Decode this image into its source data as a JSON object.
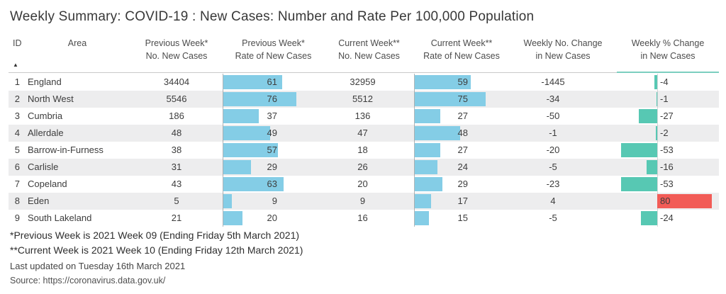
{
  "title": "Weekly Summary: COVID-19 : New Cases: Number and Rate Per 100,000 Population",
  "sort_icon": "▲",
  "colors": {
    "bar_blue": "#84cde6",
    "bar_teal": "#57c8b3",
    "bar_red": "#f25c57",
    "stripe": "#ededee",
    "header_underline": "#c9c9c9",
    "header_underline_accent": "#7ccfbf",
    "body_text": "#3d3d3d"
  },
  "table": {
    "columns": [
      {
        "id": "id",
        "line1": "ID",
        "line2": ""
      },
      {
        "id": "area",
        "line1": "Area",
        "line2": ""
      },
      {
        "id": "prev_no",
        "line1": "Previous Week*",
        "line2": "No. New Cases"
      },
      {
        "id": "prev_rate",
        "line1": "Previous Week*",
        "line2": "Rate of New Cases"
      },
      {
        "id": "curr_no",
        "line1": "Current Week**",
        "line2": "No. New Cases"
      },
      {
        "id": "curr_rate",
        "line1": "Current Week**",
        "line2": "Rate of New Cases"
      },
      {
        "id": "wk_change",
        "line1": "Weekly No. Change",
        "line2": "in New Cases"
      },
      {
        "id": "pct_change",
        "line1": "Weekly % Change",
        "line2": "in New Cases"
      }
    ],
    "rows": [
      {
        "id": 1,
        "area": "England",
        "prev_no": 34404,
        "prev_rate": 61,
        "curr_no": 32959,
        "curr_rate": 59,
        "wk_change": -1445,
        "pct_change": -4
      },
      {
        "id": 2,
        "area": "North West",
        "prev_no": 5546,
        "prev_rate": 76,
        "curr_no": 5512,
        "curr_rate": 75,
        "wk_change": -34,
        "pct_change": -1
      },
      {
        "id": 3,
        "area": "Cumbria",
        "prev_no": 186,
        "prev_rate": 37,
        "curr_no": 136,
        "curr_rate": 27,
        "wk_change": -50,
        "pct_change": -27
      },
      {
        "id": 4,
        "area": "Allerdale",
        "prev_no": 48,
        "prev_rate": 49,
        "curr_no": 47,
        "curr_rate": 48,
        "wk_change": -1,
        "pct_change": -2
      },
      {
        "id": 5,
        "area": "Barrow-in-Furness",
        "prev_no": 38,
        "prev_rate": 57,
        "curr_no": 18,
        "curr_rate": 27,
        "wk_change": -20,
        "pct_change": -53
      },
      {
        "id": 6,
        "area": "Carlisle",
        "prev_no": 31,
        "prev_rate": 29,
        "curr_no": 26,
        "curr_rate": 24,
        "wk_change": -5,
        "pct_change": -16
      },
      {
        "id": 7,
        "area": "Copeland",
        "prev_no": 43,
        "prev_rate": 63,
        "curr_no": 20,
        "curr_rate": 29,
        "wk_change": -23,
        "pct_change": -53
      },
      {
        "id": 8,
        "area": "Eden",
        "prev_no": 5,
        "prev_rate": 9,
        "curr_no": 9,
        "curr_rate": 17,
        "wk_change": 4,
        "pct_change": 80
      },
      {
        "id": 9,
        "area": "South Lakeland",
        "prev_no": 21,
        "prev_rate": 20,
        "curr_no": 16,
        "curr_rate": 15,
        "wk_change": -5,
        "pct_change": -24
      }
    ]
  },
  "chart_data": {
    "type": "table",
    "title": "Weekly Summary: COVID-19 : New Cases: Number and Rate Per 100,000 Population",
    "columns": [
      "ID",
      "Area",
      "Previous Week* No. New Cases",
      "Previous Week* Rate of New Cases",
      "Current Week** No. New Cases",
      "Current Week** Rate of New Cases",
      "Weekly No. Change in New Cases",
      "Weekly % Change in New Cases"
    ],
    "rows": [
      [
        1,
        "England",
        34404,
        61,
        32959,
        59,
        -1445,
        -4
      ],
      [
        2,
        "North West",
        5546,
        76,
        5512,
        75,
        -34,
        -1
      ],
      [
        3,
        "Cumbria",
        186,
        37,
        136,
        27,
        -50,
        -27
      ],
      [
        4,
        "Allerdale",
        48,
        49,
        47,
        48,
        -1,
        -2
      ],
      [
        5,
        "Barrow-in-Furness",
        38,
        57,
        18,
        27,
        -20,
        -53
      ],
      [
        6,
        "Carlisle",
        31,
        29,
        26,
        24,
        -5,
        -16
      ],
      [
        7,
        "Copeland",
        43,
        63,
        20,
        29,
        -23,
        -53
      ],
      [
        8,
        "Eden",
        5,
        9,
        9,
        17,
        4,
        80
      ],
      [
        9,
        "South Lakeland",
        21,
        20,
        16,
        15,
        -5,
        -24
      ]
    ],
    "data_bars": {
      "prev_rate": {
        "color": "#84cde6",
        "max": 76
      },
      "curr_rate": {
        "color": "#84cde6",
        "max": 75
      },
      "pct_change": {
        "negative_color": "#57c8b3",
        "positive_color": "#f25c57",
        "range": [
          -53,
          80
        ]
      }
    },
    "sort": {
      "column": "ID",
      "direction": "ascending"
    }
  },
  "footnotes": [
    "*Previous Week is 2021 Week 09 (Ending Friday 5th March 2021)",
    "**Current Week is 2021 Week 10 (Ending Friday 12th March 2021)",
    "Last updated on Tuesday 16th March 2021",
    "Source: https://coronavirus.data.gov.uk/"
  ]
}
